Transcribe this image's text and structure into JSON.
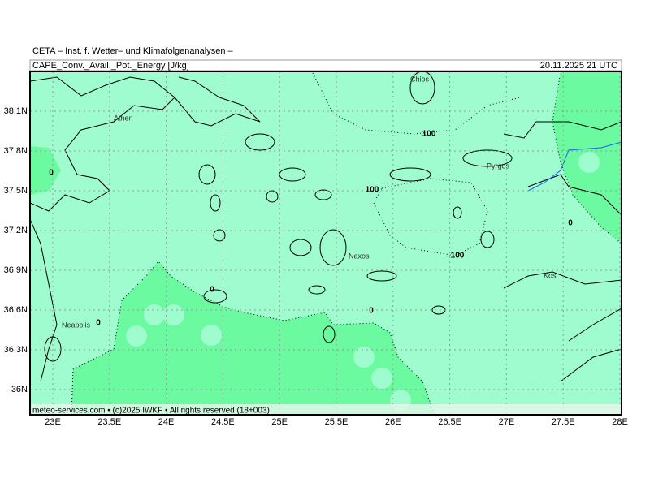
{
  "header": {
    "title": "CETA – Inst. f. Wetter– und Klimafolgenanalysen –",
    "parameter": "CAPE_Conv._Avail._Pot._Energy [J/kg]",
    "valid_time": "20.11.2025 21 UTC"
  },
  "map": {
    "lon_ticks": [
      {
        "value": 23,
        "label": "23E"
      },
      {
        "value": 23.5,
        "label": "23.5E"
      },
      {
        "value": 24,
        "label": "24E"
      },
      {
        "value": 24.5,
        "label": "24.5E"
      },
      {
        "value": 25,
        "label": "25E"
      },
      {
        "value": 25.5,
        "label": "25.5E"
      },
      {
        "value": 26,
        "label": "26E"
      },
      {
        "value": 26.5,
        "label": "26.5E"
      },
      {
        "value": 27,
        "label": "27E"
      },
      {
        "value": 27.5,
        "label": "27.5E"
      },
      {
        "value": 28,
        "label": "28E"
      }
    ],
    "lat_ticks": [
      {
        "value": 38.1,
        "label": "38.1N"
      },
      {
        "value": 37.8,
        "label": "37.8N"
      },
      {
        "value": 37.5,
        "label": "37.5N"
      },
      {
        "value": 37.2,
        "label": "37.2N"
      },
      {
        "value": 36.9,
        "label": "36.9N"
      },
      {
        "value": 36.6,
        "label": "36.6N"
      },
      {
        "value": 36.3,
        "label": "36.3N"
      },
      {
        "value": 36,
        "label": "36N"
      }
    ],
    "places": [
      "Athen",
      "Chios",
      "Pyrgos",
      "Naxos",
      "Kos",
      "Neapolis"
    ],
    "contour_labels": [
      100,
      100,
      100,
      0,
      0,
      0,
      0,
      0
    ]
  },
  "footer": "meteo-services.com • (c)2025 IWKF • All rights reserved (18+003)"
}
